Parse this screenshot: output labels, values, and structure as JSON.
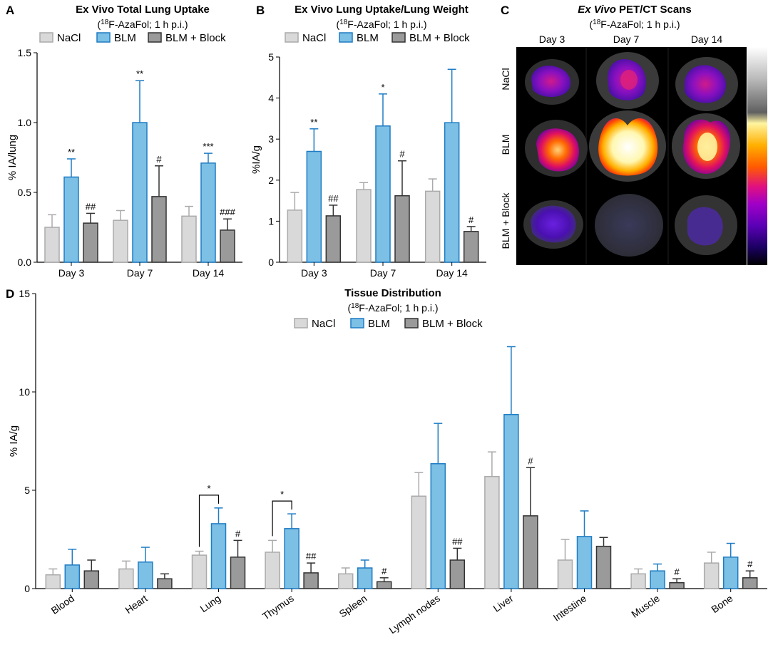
{
  "colors": {
    "NaCl": "#d9d9d9",
    "BLM": "#7cc0e5",
    "BLM + Block": "#9a9a9a",
    "NaCl_edge": "#aaaaaa",
    "BLM_edge": "#1f7cc4",
    "Block_edge": "#333333"
  },
  "legend": [
    "NaCl",
    "BLM",
    "BLM + Block"
  ],
  "chart_data": [
    {
      "panel": "A",
      "type": "bar",
      "title": "Ex Vivo Total Lung Uptake",
      "subtitle_sup": "18",
      "subtitle_rest": "F-AzaFol; 1 h p.i.)",
      "ylabel": "% IA/lung",
      "ylim": [
        0,
        1.5
      ],
      "yticks": [
        "0.0",
        "0.5",
        "1.0",
        "1.5"
      ],
      "categories": [
        "Day 3",
        "Day 7",
        "Day 14"
      ],
      "series": [
        {
          "name": "NaCl",
          "values": [
            0.25,
            0.3,
            0.33
          ],
          "err": [
            0.09,
            0.07,
            0.07
          ]
        },
        {
          "name": "BLM",
          "values": [
            0.61,
            1.0,
            0.71
          ],
          "err": [
            0.13,
            0.3,
            0.07
          ]
        },
        {
          "name": "BLM + Block",
          "values": [
            0.28,
            0.47,
            0.23
          ],
          "err": [
            0.07,
            0.22,
            0.08
          ]
        }
      ],
      "annotations": [
        [
          "",
          "",
          ""
        ],
        [
          "**",
          "**",
          "***"
        ],
        [
          "##",
          "#",
          "###"
        ]
      ]
    },
    {
      "panel": "B",
      "type": "bar",
      "title": "Ex Vivo Lung Uptake/Lung Weight",
      "subtitle_sup": "18",
      "subtitle_rest": "F-AzaFol; 1 h p.i.)",
      "ylabel": "%IA/g",
      "ylim": [
        0,
        5
      ],
      "yticks": [
        "0",
        "1",
        "2",
        "3",
        "4",
        "5"
      ],
      "categories": [
        "Day 3",
        "Day 7",
        "Day 14"
      ],
      "series": [
        {
          "name": "NaCl",
          "values": [
            1.27,
            1.77,
            1.73
          ],
          "err": [
            0.43,
            0.17,
            0.3
          ]
        },
        {
          "name": "BLM",
          "values": [
            2.7,
            3.32,
            3.4
          ],
          "err": [
            0.55,
            0.78,
            1.3
          ]
        },
        {
          "name": "BLM + Block",
          "values": [
            1.13,
            1.62,
            0.75
          ],
          "err": [
            0.26,
            0.85,
            0.12
          ]
        }
      ],
      "annotations": [
        [
          "",
          "",
          ""
        ],
        [
          "**",
          "*",
          ""
        ],
        [
          "##",
          "#",
          "#"
        ]
      ]
    },
    {
      "panel": "D",
      "type": "bar",
      "title": "Tissue Distribution",
      "subtitle_sup": "18",
      "subtitle_rest": "F-AzaFol; 1 h p.i.)",
      "ylabel": "% IA/g",
      "ylim": [
        0,
        15
      ],
      "yticks": [
        "0",
        "5",
        "10",
        "15"
      ],
      "categories": [
        "Blood",
        "Heart",
        "Lung",
        "Thymus",
        "Spleen",
        "Lymph nodes",
        "Liver",
        "Intestine",
        "Muscle",
        "Bone"
      ],
      "series": [
        {
          "name": "NaCl",
          "values": [
            0.7,
            1.0,
            1.7,
            1.85,
            0.75,
            4.7,
            5.7,
            1.45,
            0.75,
            1.3
          ],
          "err": [
            0.3,
            0.4,
            0.2,
            0.6,
            0.3,
            1.2,
            1.25,
            1.05,
            0.25,
            0.55
          ]
        },
        {
          "name": "BLM",
          "values": [
            1.2,
            1.35,
            3.3,
            3.05,
            1.05,
            6.35,
            8.85,
            2.65,
            0.9,
            1.6
          ],
          "err": [
            0.8,
            0.75,
            0.8,
            0.75,
            0.4,
            2.05,
            3.45,
            1.3,
            0.35,
            0.7
          ]
        },
        {
          "name": "BLM + Block",
          "values": [
            0.9,
            0.5,
            1.6,
            0.8,
            0.35,
            1.45,
            3.7,
            2.15,
            0.3,
            0.55
          ],
          "err": [
            0.55,
            0.25,
            0.85,
            0.5,
            0.2,
            0.6,
            2.45,
            0.45,
            0.2,
            0.35
          ]
        }
      ],
      "annotations": [
        [
          "",
          "",
          "",
          "",
          "",
          "",
          "",
          "",
          "",
          ""
        ],
        [
          "",
          "",
          "",
          "",
          "",
          "",
          "",
          "",
          "",
          ""
        ],
        [
          "",
          "",
          "#",
          "##",
          "#",
          "##",
          "#",
          "",
          "#",
          "#"
        ]
      ],
      "brackets": [
        {
          "category": "Lung",
          "label": "*"
        },
        {
          "category": "Thymus",
          "label": "*"
        }
      ]
    }
  ],
  "panelC": {
    "panel": "C",
    "title_italic": "Ex Vivo",
    "title_rest": " PET/CT Scans",
    "subtitle_sup": "18",
    "subtitle_rest": "F-AzaFol; 1 h p.i.)",
    "columns": [
      "Day 3",
      "Day 7",
      "Day 14"
    ],
    "rows": [
      "NaCl",
      "BLM",
      "BLM + Block"
    ]
  }
}
